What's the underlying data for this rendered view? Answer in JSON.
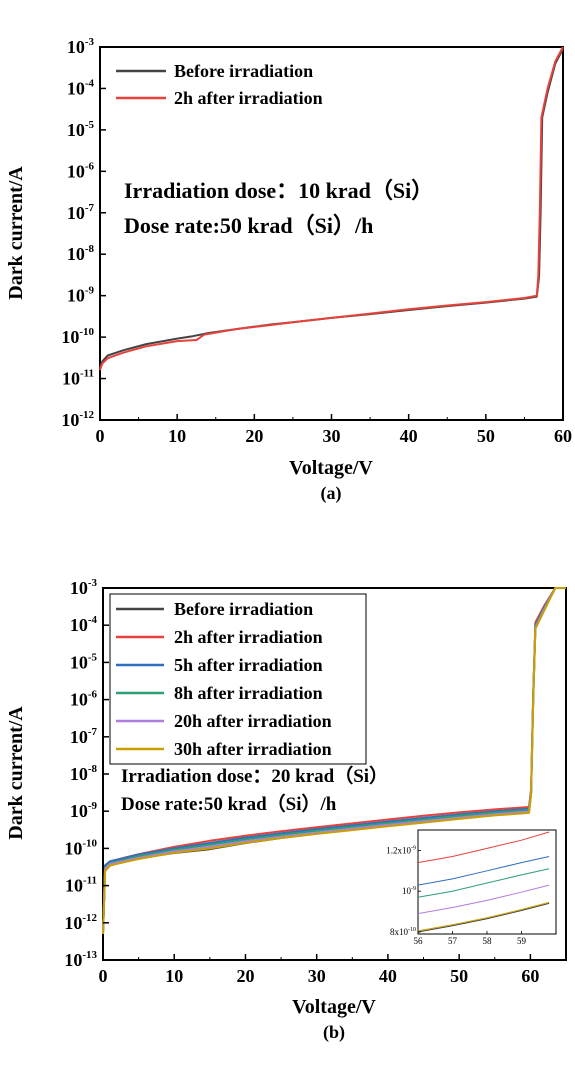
{
  "chart_data": [
    {
      "type": "line",
      "panel_label": "(a)",
      "xlabel": "Voltage/V",
      "ylabel": "Dark current/A",
      "xlim": [
        0,
        60
      ],
      "ylim_log10": [
        -12,
        -3
      ],
      "y_scale": "log",
      "x_ticks": [
        "0",
        "10",
        "20",
        "30",
        "40",
        "50",
        "60"
      ],
      "y_tick_exponents": [
        "-12",
        "-11",
        "-10",
        "-9",
        "-8",
        "-7",
        "-6",
        "-5",
        "-4",
        "-3"
      ],
      "y_tick_base": "10",
      "legend_position": "top-left",
      "annotation_lines": [
        "Irradiation dose：10 krad（Si）",
        "Dose rate:50 krad（Si）/h"
      ],
      "series": [
        {
          "name": "Before irradiation",
          "color": "#444444",
          "points": [
            [
              0,
              1.8e-11
            ],
            [
              0.3,
              2.6e-11
            ],
            [
              1,
              3.6e-11
            ],
            [
              3,
              4.8e-11
            ],
            [
              6,
              6.8e-11
            ],
            [
              10,
              9.2e-11
            ],
            [
              12,
              1.05e-10
            ],
            [
              14,
              1.25e-10
            ],
            [
              18,
              1.6e-10
            ],
            [
              22,
              2e-10
            ],
            [
              26,
              2.4e-10
            ],
            [
              30,
              2.9e-10
            ],
            [
              35,
              3.6e-10
            ],
            [
              40,
              4.5e-10
            ],
            [
              45,
              5.6e-10
            ],
            [
              50,
              6.8e-10
            ],
            [
              55,
              8.5e-10
            ],
            [
              56.6,
              9.5e-10
            ],
            [
              56.9,
              3e-09
            ],
            [
              57.1,
              1e-07
            ],
            [
              57.3,
              2e-05
            ],
            [
              58,
              8e-05
            ],
            [
              59,
              0.0004
            ],
            [
              60,
              0.0009
            ]
          ]
        },
        {
          "name": "2h after irradiation",
          "color": "#e8413b",
          "points": [
            [
              0,
              1.6e-11
            ],
            [
              0.3,
              2.3e-11
            ],
            [
              1,
              3.1e-11
            ],
            [
              3,
              4.2e-11
            ],
            [
              6,
              6e-11
            ],
            [
              10,
              8e-11
            ],
            [
              12.5,
              8.5e-11
            ],
            [
              13.5,
              1.15e-10
            ],
            [
              18,
              1.6e-10
            ],
            [
              22,
              1.95e-10
            ],
            [
              26,
              2.4e-10
            ],
            [
              30,
              2.9e-10
            ],
            [
              35,
              3.7e-10
            ],
            [
              40,
              4.7e-10
            ],
            [
              45,
              5.8e-10
            ],
            [
              50,
              7e-10
            ],
            [
              55,
              8.8e-10
            ],
            [
              56.6,
              1e-09
            ],
            [
              56.8,
              3e-09
            ],
            [
              57.0,
              1e-07
            ],
            [
              57.2,
              2e-05
            ],
            [
              58,
              0.0001
            ],
            [
              59,
              0.00045
            ],
            [
              60,
              0.001
            ]
          ]
        }
      ]
    },
    {
      "type": "line",
      "panel_label": "(b)",
      "xlabel": "Voltage/V",
      "ylabel": "Dark current/A",
      "xlim": [
        0,
        65
      ],
      "ylim_log10": [
        -13,
        -3
      ],
      "y_scale": "log",
      "x_ticks": [
        "0",
        "10",
        "20",
        "30",
        "40",
        "50",
        "60"
      ],
      "y_tick_exponents": [
        "-13",
        "-12",
        "-11",
        "-10",
        "-9",
        "-8",
        "-7",
        "-6",
        "-5",
        "-4",
        "-3"
      ],
      "y_tick_base": "10",
      "legend_position": "top-left",
      "annotation_lines": [
        "Irradiation dose：20 krad（Si）",
        "Dose rate:50 krad（Si）/h"
      ],
      "series": [
        {
          "name": "Before irradiation",
          "color": "#444444",
          "points": [
            [
              0,
              5e-13
            ],
            [
              0.3,
              2.5e-11
            ],
            [
              1,
              3.5e-11
            ],
            [
              5,
              5.5e-11
            ],
            [
              10,
              7.5e-11
            ],
            [
              15,
              9.5e-11
            ],
            [
              20,
              1.4e-10
            ],
            [
              25,
              1.9e-10
            ],
            [
              30,
              2.5e-10
            ],
            [
              35,
              3.2e-10
            ],
            [
              40,
              4.2e-10
            ],
            [
              45,
              5.3e-10
            ],
            [
              50,
              6.6e-10
            ],
            [
              55,
              8.2e-10
            ],
            [
              59.8,
              9.3e-10
            ],
            [
              60.1,
              3e-09
            ],
            [
              60.4,
              1e-06
            ],
            [
              60.7,
              0.0001
            ],
            [
              62,
              0.0003
            ],
            [
              63.5,
              0.001
            ],
            [
              65,
              0.001
            ]
          ]
        },
        {
          "name": "2h after irradiation",
          "color": "#e8413b",
          "points": [
            [
              0,
              5e-13
            ],
            [
              0.3,
              3.5e-11
            ],
            [
              1,
              4.5e-11
            ],
            [
              5,
              7e-11
            ],
            [
              10,
              1.1e-10
            ],
            [
              15,
              1.6e-10
            ],
            [
              20,
              2.2e-10
            ],
            [
              25,
              2.9e-10
            ],
            [
              30,
              3.7e-10
            ],
            [
              35,
              4.7e-10
            ],
            [
              40,
              6e-10
            ],
            [
              45,
              7.5e-10
            ],
            [
              50,
              9.3e-10
            ],
            [
              55,
              1.12e-09
            ],
            [
              59.8,
              1.3e-09
            ],
            [
              60.1,
              4e-09
            ],
            [
              60.4,
              1.5e-06
            ],
            [
              60.7,
              0.00012
            ],
            [
              62,
              0.00035
            ],
            [
              63.5,
              0.001
            ],
            [
              65,
              0.001
            ]
          ]
        },
        {
          "name": "5h after irradiation",
          "color": "#2f6fc0",
          "points": [
            [
              0,
              5e-13
            ],
            [
              0.3,
              3.5e-11
            ],
            [
              1,
              4.5e-11
            ],
            [
              5,
              6.8e-11
            ],
            [
              10,
              1e-10
            ],
            [
              15,
              1.4e-10
            ],
            [
              20,
              1.95e-10
            ],
            [
              25,
              2.55e-10
            ],
            [
              30,
              3.3e-10
            ],
            [
              35,
              4.2e-10
            ],
            [
              40,
              5.3e-10
            ],
            [
              45,
              6.6e-10
            ],
            [
              50,
              8.2e-10
            ],
            [
              55,
              1e-09
            ],
            [
              59.8,
              1.16e-09
            ],
            [
              60.1,
              3.5e-09
            ],
            [
              60.4,
              1.2e-06
            ],
            [
              60.7,
              0.0001
            ],
            [
              62,
              0.00032
            ],
            [
              63.5,
              0.001
            ],
            [
              65,
              0.001
            ]
          ]
        },
        {
          "name": "8h after irradiation",
          "color": "#2e9e73",
          "points": [
            [
              0,
              5e-13
            ],
            [
              0.3,
              3e-11
            ],
            [
              1,
              4e-11
            ],
            [
              5,
              6.2e-11
            ],
            [
              10,
              9.2e-11
            ],
            [
              15,
              1.25e-10
            ],
            [
              20,
              1.75e-10
            ],
            [
              25,
              2.3e-10
            ],
            [
              30,
              3e-10
            ],
            [
              35,
              3.8e-10
            ],
            [
              40,
              4.8e-10
            ],
            [
              45,
              6e-10
            ],
            [
              50,
              7.5e-10
            ],
            [
              55,
              9.2e-10
            ],
            [
              59.8,
              1.08e-09
            ],
            [
              60.1,
              3.3e-09
            ],
            [
              60.4,
              1.1e-06
            ],
            [
              60.7,
              9e-05
            ],
            [
              62,
              0.0003
            ],
            [
              63.5,
              0.001
            ],
            [
              65,
              0.001
            ]
          ]
        },
        {
          "name": "20h after irradiation",
          "color": "#b07de0",
          "points": [
            [
              0,
              5e-13
            ],
            [
              0.3,
              2.8e-11
            ],
            [
              1,
              3.8e-11
            ],
            [
              5,
              5.6e-11
            ],
            [
              10,
              8.3e-11
            ],
            [
              15,
              1.1e-10
            ],
            [
              20,
              1.55e-10
            ],
            [
              25,
              2.05e-10
            ],
            [
              30,
              2.65e-10
            ],
            [
              35,
              3.4e-10
            ],
            [
              40,
              4.3e-10
            ],
            [
              45,
              5.4e-10
            ],
            [
              50,
              6.7e-10
            ],
            [
              55,
              8.3e-10
            ],
            [
              59.8,
              9.8e-10
            ],
            [
              60.1,
              3e-09
            ],
            [
              60.4,
              1e-06
            ],
            [
              60.7,
              8.5e-05
            ],
            [
              62,
              0.00028
            ],
            [
              63.5,
              0.001
            ],
            [
              65,
              0.001
            ]
          ]
        },
        {
          "name": "30h after irradiation",
          "color": "#c9a000",
          "points": [
            [
              0,
              5e-13
            ],
            [
              0.3,
              2.5e-11
            ],
            [
              1,
              3.5e-11
            ],
            [
              5,
              5.2e-11
            ],
            [
              10,
              7.6e-11
            ],
            [
              15,
              1e-10
            ],
            [
              20,
              1.42e-10
            ],
            [
              25,
              1.9e-10
            ],
            [
              30,
              2.45e-10
            ],
            [
              35,
              3.1e-10
            ],
            [
              40,
              3.95e-10
            ],
            [
              45,
              4.95e-10
            ],
            [
              50,
              6.2e-10
            ],
            [
              55,
              7.7e-10
            ],
            [
              59.8,
              9e-10
            ],
            [
              60.1,
              2.8e-09
            ],
            [
              60.4,
              9e-07
            ],
            [
              60.7,
              8e-05
            ],
            [
              62,
              0.00026
            ],
            [
              63.5,
              0.001
            ],
            [
              65,
              0.001
            ]
          ]
        }
      ],
      "inset": {
        "xlim": [
          56,
          60
        ],
        "x_ticks": [
          "56",
          "57",
          "58",
          "59"
        ],
        "y_tick_labels": [
          {
            "mant": "1.2x10",
            "exp": "-9",
            "value": 1.2e-09
          },
          {
            "mant": "10",
            "exp": "-9",
            "value": 1e-09
          },
          {
            "mant": "8x10",
            "exp": "-10",
            "value": 8e-10
          }
        ],
        "ylim": [
          7.9e-10,
          1.3e-09
        ],
        "series": [
          {
            "color": "#e8413b",
            "points": [
              [
                56,
                1.14e-09
              ],
              [
                57,
                1.17e-09
              ],
              [
                58,
                1.21e-09
              ],
              [
                59,
                1.25e-09
              ],
              [
                59.8,
                1.29e-09
              ]
            ]
          },
          {
            "color": "#2f6fc0",
            "points": [
              [
                56,
                1.03e-09
              ],
              [
                57,
                1.06e-09
              ],
              [
                58,
                1.1e-09
              ],
              [
                59,
                1.14e-09
              ],
              [
                59.8,
                1.17e-09
              ]
            ]
          },
          {
            "color": "#2e9e73",
            "points": [
              [
                56,
                9.7e-10
              ],
              [
                57,
                1e-09
              ],
              [
                58,
                1.04e-09
              ],
              [
                59,
                1.08e-09
              ],
              [
                59.8,
                1.11e-09
              ]
            ]
          },
          {
            "color": "#b07de0",
            "points": [
              [
                56,
                8.9e-10
              ],
              [
                57,
                9.2e-10
              ],
              [
                58,
                9.55e-10
              ],
              [
                59,
                9.95e-10
              ],
              [
                59.8,
                1.03e-09
              ]
            ]
          },
          {
            "color": "#444444",
            "points": [
              [
                56,
                8e-10
              ],
              [
                57,
                8.3e-10
              ],
              [
                58,
                8.65e-10
              ],
              [
                59,
                9.05e-10
              ],
              [
                59.8,
                9.4e-10
              ]
            ]
          },
          {
            "color": "#c9a000",
            "points": [
              [
                56,
                8.05e-10
              ],
              [
                57,
                8.35e-10
              ],
              [
                58,
                8.7e-10
              ],
              [
                59,
                9.1e-10
              ],
              [
                59.8,
                9.45e-10
              ]
            ]
          }
        ]
      }
    }
  ]
}
